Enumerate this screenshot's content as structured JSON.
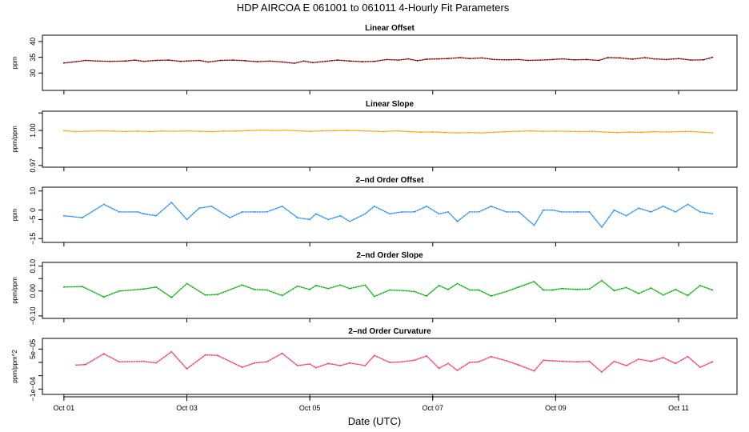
{
  "chart_data": {
    "type": "line",
    "title": "HDP    AIRCOA E    061001 to 061011    4-Hourly Fit Parameters",
    "xlabel": "Date (UTC)",
    "xlim": [
      -0.35,
      10.95
    ],
    "x_ticks": [
      {
        "value": 0,
        "label": "Oct 01"
      },
      {
        "value": 2,
        "label": "Oct 03"
      },
      {
        "value": 4,
        "label": "Oct 05"
      },
      {
        "value": 6,
        "label": "Oct 07"
      },
      {
        "value": 8,
        "label": "Oct 09"
      },
      {
        "value": 10,
        "label": "Oct 11"
      }
    ],
    "panels": [
      {
        "title": "Linear Offset",
        "ylabel": "ppm",
        "ylim": [
          24.5,
          42
        ],
        "yticks": [
          30,
          35,
          40
        ],
        "ytick_labels": [
          "30",
          "35",
          "40"
        ],
        "color": "#8b0000",
        "series": [
          [
            0.0,
            33.2
          ],
          [
            0.2,
            33.6
          ],
          [
            0.35,
            34.0
          ],
          [
            0.55,
            33.8
          ],
          [
            0.75,
            33.7
          ],
          [
            1.0,
            33.8
          ],
          [
            1.15,
            34.1
          ],
          [
            1.3,
            33.7
          ],
          [
            1.5,
            34.0
          ],
          [
            1.7,
            34.1
          ],
          [
            1.9,
            33.7
          ],
          [
            2.0,
            33.8
          ],
          [
            2.2,
            34.0
          ],
          [
            2.35,
            33.5
          ],
          [
            2.55,
            34.0
          ],
          [
            2.75,
            34.1
          ],
          [
            2.95,
            33.9
          ],
          [
            3.15,
            33.6
          ],
          [
            3.35,
            33.8
          ],
          [
            3.55,
            33.5
          ],
          [
            3.75,
            33.1
          ],
          [
            3.9,
            33.8
          ],
          [
            4.05,
            33.3
          ],
          [
            4.25,
            33.7
          ],
          [
            4.45,
            34.1
          ],
          [
            4.65,
            33.8
          ],
          [
            4.85,
            33.6
          ],
          [
            5.05,
            33.7
          ],
          [
            5.25,
            34.3
          ],
          [
            5.45,
            34.1
          ],
          [
            5.6,
            34.5
          ],
          [
            5.75,
            33.9
          ],
          [
            5.9,
            34.4
          ],
          [
            6.1,
            34.5
          ],
          [
            6.25,
            34.6
          ],
          [
            6.45,
            34.9
          ],
          [
            6.6,
            34.6
          ],
          [
            6.8,
            34.8
          ],
          [
            7.0,
            34.3
          ],
          [
            7.2,
            34.2
          ],
          [
            7.4,
            34.3
          ],
          [
            7.55,
            34.0
          ],
          [
            7.75,
            34.1
          ],
          [
            7.95,
            34.3
          ],
          [
            8.1,
            34.5
          ],
          [
            8.3,
            34.2
          ],
          [
            8.5,
            34.3
          ],
          [
            8.7,
            34.0
          ],
          [
            8.85,
            34.9
          ],
          [
            9.05,
            34.8
          ],
          [
            9.25,
            34.4
          ],
          [
            9.45,
            34.9
          ],
          [
            9.6,
            34.5
          ],
          [
            9.8,
            34.3
          ],
          [
            10.0,
            34.6
          ],
          [
            10.2,
            34.1
          ],
          [
            10.4,
            34.2
          ],
          [
            10.55,
            35.0
          ]
        ]
      },
      {
        "title": "Linear Slope",
        "ylabel": "ppm/ppm",
        "ylim": [
          0.9685,
          1.0165
        ],
        "yticks": [
          0.97,
          0.985,
          1.0,
          1.015
        ],
        "ytick_labels": [
          "0.97",
          "",
          "1.00",
          ""
        ],
        "color": "#ffa500",
        "series": [
          [
            0.0,
            0.9998
          ],
          [
            0.2,
            0.999
          ],
          [
            0.4,
            0.9994
          ],
          [
            0.6,
            0.9996
          ],
          [
            0.8,
            0.9994
          ],
          [
            1.0,
            0.9991
          ],
          [
            1.2,
            0.9994
          ],
          [
            1.4,
            0.999
          ],
          [
            1.6,
            0.9995
          ],
          [
            1.8,
            0.9993
          ],
          [
            2.0,
            0.9996
          ],
          [
            2.2,
            0.9993
          ],
          [
            2.4,
            0.999
          ],
          [
            2.6,
            0.9995
          ],
          [
            2.8,
            0.9994
          ],
          [
            3.0,
            0.9998
          ],
          [
            3.2,
            1.0002
          ],
          [
            3.4,
            0.9999
          ],
          [
            3.6,
            1.0001
          ],
          [
            3.8,
            0.9997
          ],
          [
            4.0,
            0.9992
          ],
          [
            4.2,
            0.9996
          ],
          [
            4.4,
            0.9998
          ],
          [
            4.6,
            0.9999
          ],
          [
            4.8,
            0.9998
          ],
          [
            5.0,
            0.9994
          ],
          [
            5.2,
            0.999
          ],
          [
            5.4,
            0.9997
          ],
          [
            5.6,
            0.999
          ],
          [
            5.8,
            0.9985
          ],
          [
            6.0,
            0.9987
          ],
          [
            6.2,
            0.9982
          ],
          [
            6.4,
            0.998
          ],
          [
            6.6,
            0.9982
          ],
          [
            6.8,
            0.9979
          ],
          [
            7.0,
            0.9984
          ],
          [
            7.2,
            0.999
          ],
          [
            7.4,
            0.9993
          ],
          [
            7.6,
            0.9996
          ],
          [
            7.8,
            0.9992
          ],
          [
            8.0,
            0.9994
          ],
          [
            8.2,
            0.9992
          ],
          [
            8.4,
            0.999
          ],
          [
            8.6,
            0.9993
          ],
          [
            8.8,
            0.9986
          ],
          [
            9.0,
            0.9982
          ],
          [
            9.2,
            0.9985
          ],
          [
            9.4,
            0.9983
          ],
          [
            9.6,
            0.999
          ],
          [
            9.8,
            0.9987
          ],
          [
            10.0,
            0.999
          ],
          [
            10.2,
            0.9992
          ],
          [
            10.4,
            0.9984
          ],
          [
            10.55,
            0.998
          ]
        ]
      },
      {
        "title": "2–nd Order Offset",
        "ylabel": "ppm",
        "ylim": [
          -17,
          12
        ],
        "yticks": [
          -15,
          -5,
          0,
          10
        ],
        "ytick_labels": [
          "−15",
          "−5",
          "0",
          "10"
        ],
        "color": "#1e90ff",
        "series": [
          [
            0.0,
            -3
          ],
          [
            0.3,
            -4
          ],
          [
            0.65,
            3
          ],
          [
            0.9,
            -1
          ],
          [
            1.2,
            -1
          ],
          [
            1.3,
            -2
          ],
          [
            1.5,
            -3
          ],
          [
            1.75,
            4
          ],
          [
            2.0,
            -5
          ],
          [
            2.2,
            1
          ],
          [
            2.4,
            2
          ],
          [
            2.7,
            -4
          ],
          [
            2.9,
            -1
          ],
          [
            3.1,
            -1
          ],
          [
            3.3,
            -1
          ],
          [
            3.55,
            2
          ],
          [
            3.8,
            -4
          ],
          [
            4.0,
            -5
          ],
          [
            4.1,
            -2
          ],
          [
            4.3,
            -5
          ],
          [
            4.5,
            -3
          ],
          [
            4.65,
            -6
          ],
          [
            4.9,
            -2
          ],
          [
            5.05,
            2
          ],
          [
            5.3,
            -2
          ],
          [
            5.5,
            -1
          ],
          [
            5.7,
            -1
          ],
          [
            5.9,
            2
          ],
          [
            6.1,
            -2
          ],
          [
            6.25,
            -1
          ],
          [
            6.4,
            -6
          ],
          [
            6.6,
            -1
          ],
          [
            6.75,
            -1
          ],
          [
            6.95,
            2
          ],
          [
            7.2,
            -1
          ],
          [
            7.4,
            -1
          ],
          [
            7.65,
            -8
          ],
          [
            7.8,
            0
          ],
          [
            7.95,
            0
          ],
          [
            8.1,
            -1
          ],
          [
            8.35,
            -1
          ],
          [
            8.55,
            -1
          ],
          [
            8.75,
            -9
          ],
          [
            8.95,
            0
          ],
          [
            9.15,
            -3
          ],
          [
            9.35,
            1
          ],
          [
            9.55,
            -1
          ],
          [
            9.75,
            2
          ],
          [
            9.95,
            -1
          ],
          [
            10.15,
            3
          ],
          [
            10.35,
            -1
          ],
          [
            10.55,
            -2
          ]
        ]
      },
      {
        "title": "2–nd Order Slope",
        "ylabel": "ppm/ppm",
        "ylim": [
          -0.11,
          0.115
        ],
        "yticks": [
          -0.1,
          0.0,
          0.05,
          0.1
        ],
        "ytick_labels": [
          "−0.10",
          "0.00",
          "",
          "0.10"
        ],
        "color": "#00b400",
        "series": [
          [
            0.0,
            0.016
          ],
          [
            0.3,
            0.018
          ],
          [
            0.65,
            -0.024
          ],
          [
            0.9,
            0.0
          ],
          [
            1.3,
            0.008
          ],
          [
            1.5,
            0.016
          ],
          [
            1.75,
            -0.026
          ],
          [
            2.0,
            0.03
          ],
          [
            2.3,
            -0.016
          ],
          [
            2.5,
            -0.014
          ],
          [
            2.9,
            0.024
          ],
          [
            3.1,
            0.006
          ],
          [
            3.3,
            0.004
          ],
          [
            3.55,
            -0.018
          ],
          [
            3.8,
            0.02
          ],
          [
            4.0,
            0.006
          ],
          [
            4.1,
            0.022
          ],
          [
            4.3,
            0.01
          ],
          [
            4.5,
            0.024
          ],
          [
            4.65,
            0.01
          ],
          [
            4.9,
            0.024
          ],
          [
            5.05,
            -0.022
          ],
          [
            5.3,
            0.004
          ],
          [
            5.5,
            0.002
          ],
          [
            5.7,
            -0.002
          ],
          [
            5.9,
            -0.02
          ],
          [
            6.1,
            0.022
          ],
          [
            6.25,
            0.006
          ],
          [
            6.4,
            0.03
          ],
          [
            6.6,
            0.004
          ],
          [
            6.75,
            0.004
          ],
          [
            6.95,
            -0.02
          ],
          [
            7.2,
            -0.002
          ],
          [
            7.4,
            0.016
          ],
          [
            7.65,
            0.038
          ],
          [
            7.8,
            0.004
          ],
          [
            7.95,
            0.004
          ],
          [
            8.1,
            0.01
          ],
          [
            8.35,
            0.006
          ],
          [
            8.55,
            0.008
          ],
          [
            8.75,
            0.042
          ],
          [
            8.95,
            0.002
          ],
          [
            9.15,
            0.014
          ],
          [
            9.35,
            -0.01
          ],
          [
            9.55,
            0.012
          ],
          [
            9.75,
            -0.016
          ],
          [
            9.95,
            0.006
          ],
          [
            10.15,
            -0.018
          ],
          [
            10.35,
            0.022
          ],
          [
            10.55,
            0.004
          ]
        ]
      },
      {
        "title": "2–nd Order Curvature",
        "ylabel": "ppm/ppm^2",
        "ylim": [
          -0.00012,
          9e-05
        ],
        "yticks": [
          -0.0001,
          -5e-05,
          0.0,
          5e-05
        ],
        "ytick_labels": [
          "−1e−04",
          "",
          "",
          "5e−05"
        ],
        "color": "#ff3366",
        "series": [
          [
            0.2,
            -1e-05
          ],
          [
            0.35,
            -8e-06
          ],
          [
            0.65,
            3.2e-05
          ],
          [
            0.9,
            2e-06
          ],
          [
            1.3,
            4e-06
          ],
          [
            1.5,
            -2e-06
          ],
          [
            1.75,
            4e-05
          ],
          [
            2.0,
            -2.4e-05
          ],
          [
            2.3,
            2.8e-05
          ],
          [
            2.5,
            2.6e-05
          ],
          [
            2.9,
            -1.8e-05
          ],
          [
            3.1,
            -2e-06
          ],
          [
            3.3,
            2e-06
          ],
          [
            3.55,
            3.4e-05
          ],
          [
            3.8,
            -1.2e-05
          ],
          [
            4.0,
            -6e-06
          ],
          [
            4.1,
            -2e-05
          ],
          [
            4.3,
            -4e-06
          ],
          [
            4.5,
            -1.2e-05
          ],
          [
            4.65,
            -2e-06
          ],
          [
            4.9,
            -1.2e-05
          ],
          [
            5.05,
            2.6e-05
          ],
          [
            5.3,
            0.0
          ],
          [
            5.5,
            2e-06
          ],
          [
            5.7,
            8e-06
          ],
          [
            5.9,
            2.4e-05
          ],
          [
            6.1,
            -2.2e-05
          ],
          [
            6.25,
            -4e-06
          ],
          [
            6.4,
            -3e-05
          ],
          [
            6.6,
            0.0
          ],
          [
            6.75,
            2e-06
          ],
          [
            6.95,
            2.2e-05
          ],
          [
            7.2,
            6e-06
          ],
          [
            7.4,
            -1e-05
          ],
          [
            7.65,
            -3.2e-05
          ],
          [
            7.8,
            8e-06
          ],
          [
            7.95,
            6e-06
          ],
          [
            8.1,
            4e-06
          ],
          [
            8.35,
            2e-06
          ],
          [
            8.55,
            4e-06
          ],
          [
            8.75,
            -3.6e-05
          ],
          [
            8.95,
            4e-06
          ],
          [
            9.15,
            -1.2e-05
          ],
          [
            9.35,
            1.2e-05
          ],
          [
            9.55,
            4e-06
          ],
          [
            9.75,
            1.8e-05
          ],
          [
            9.95,
            -4e-06
          ],
          [
            10.15,
            2.2e-05
          ],
          [
            10.35,
            -1.8e-05
          ],
          [
            10.55,
            2e-06
          ]
        ]
      }
    ]
  }
}
